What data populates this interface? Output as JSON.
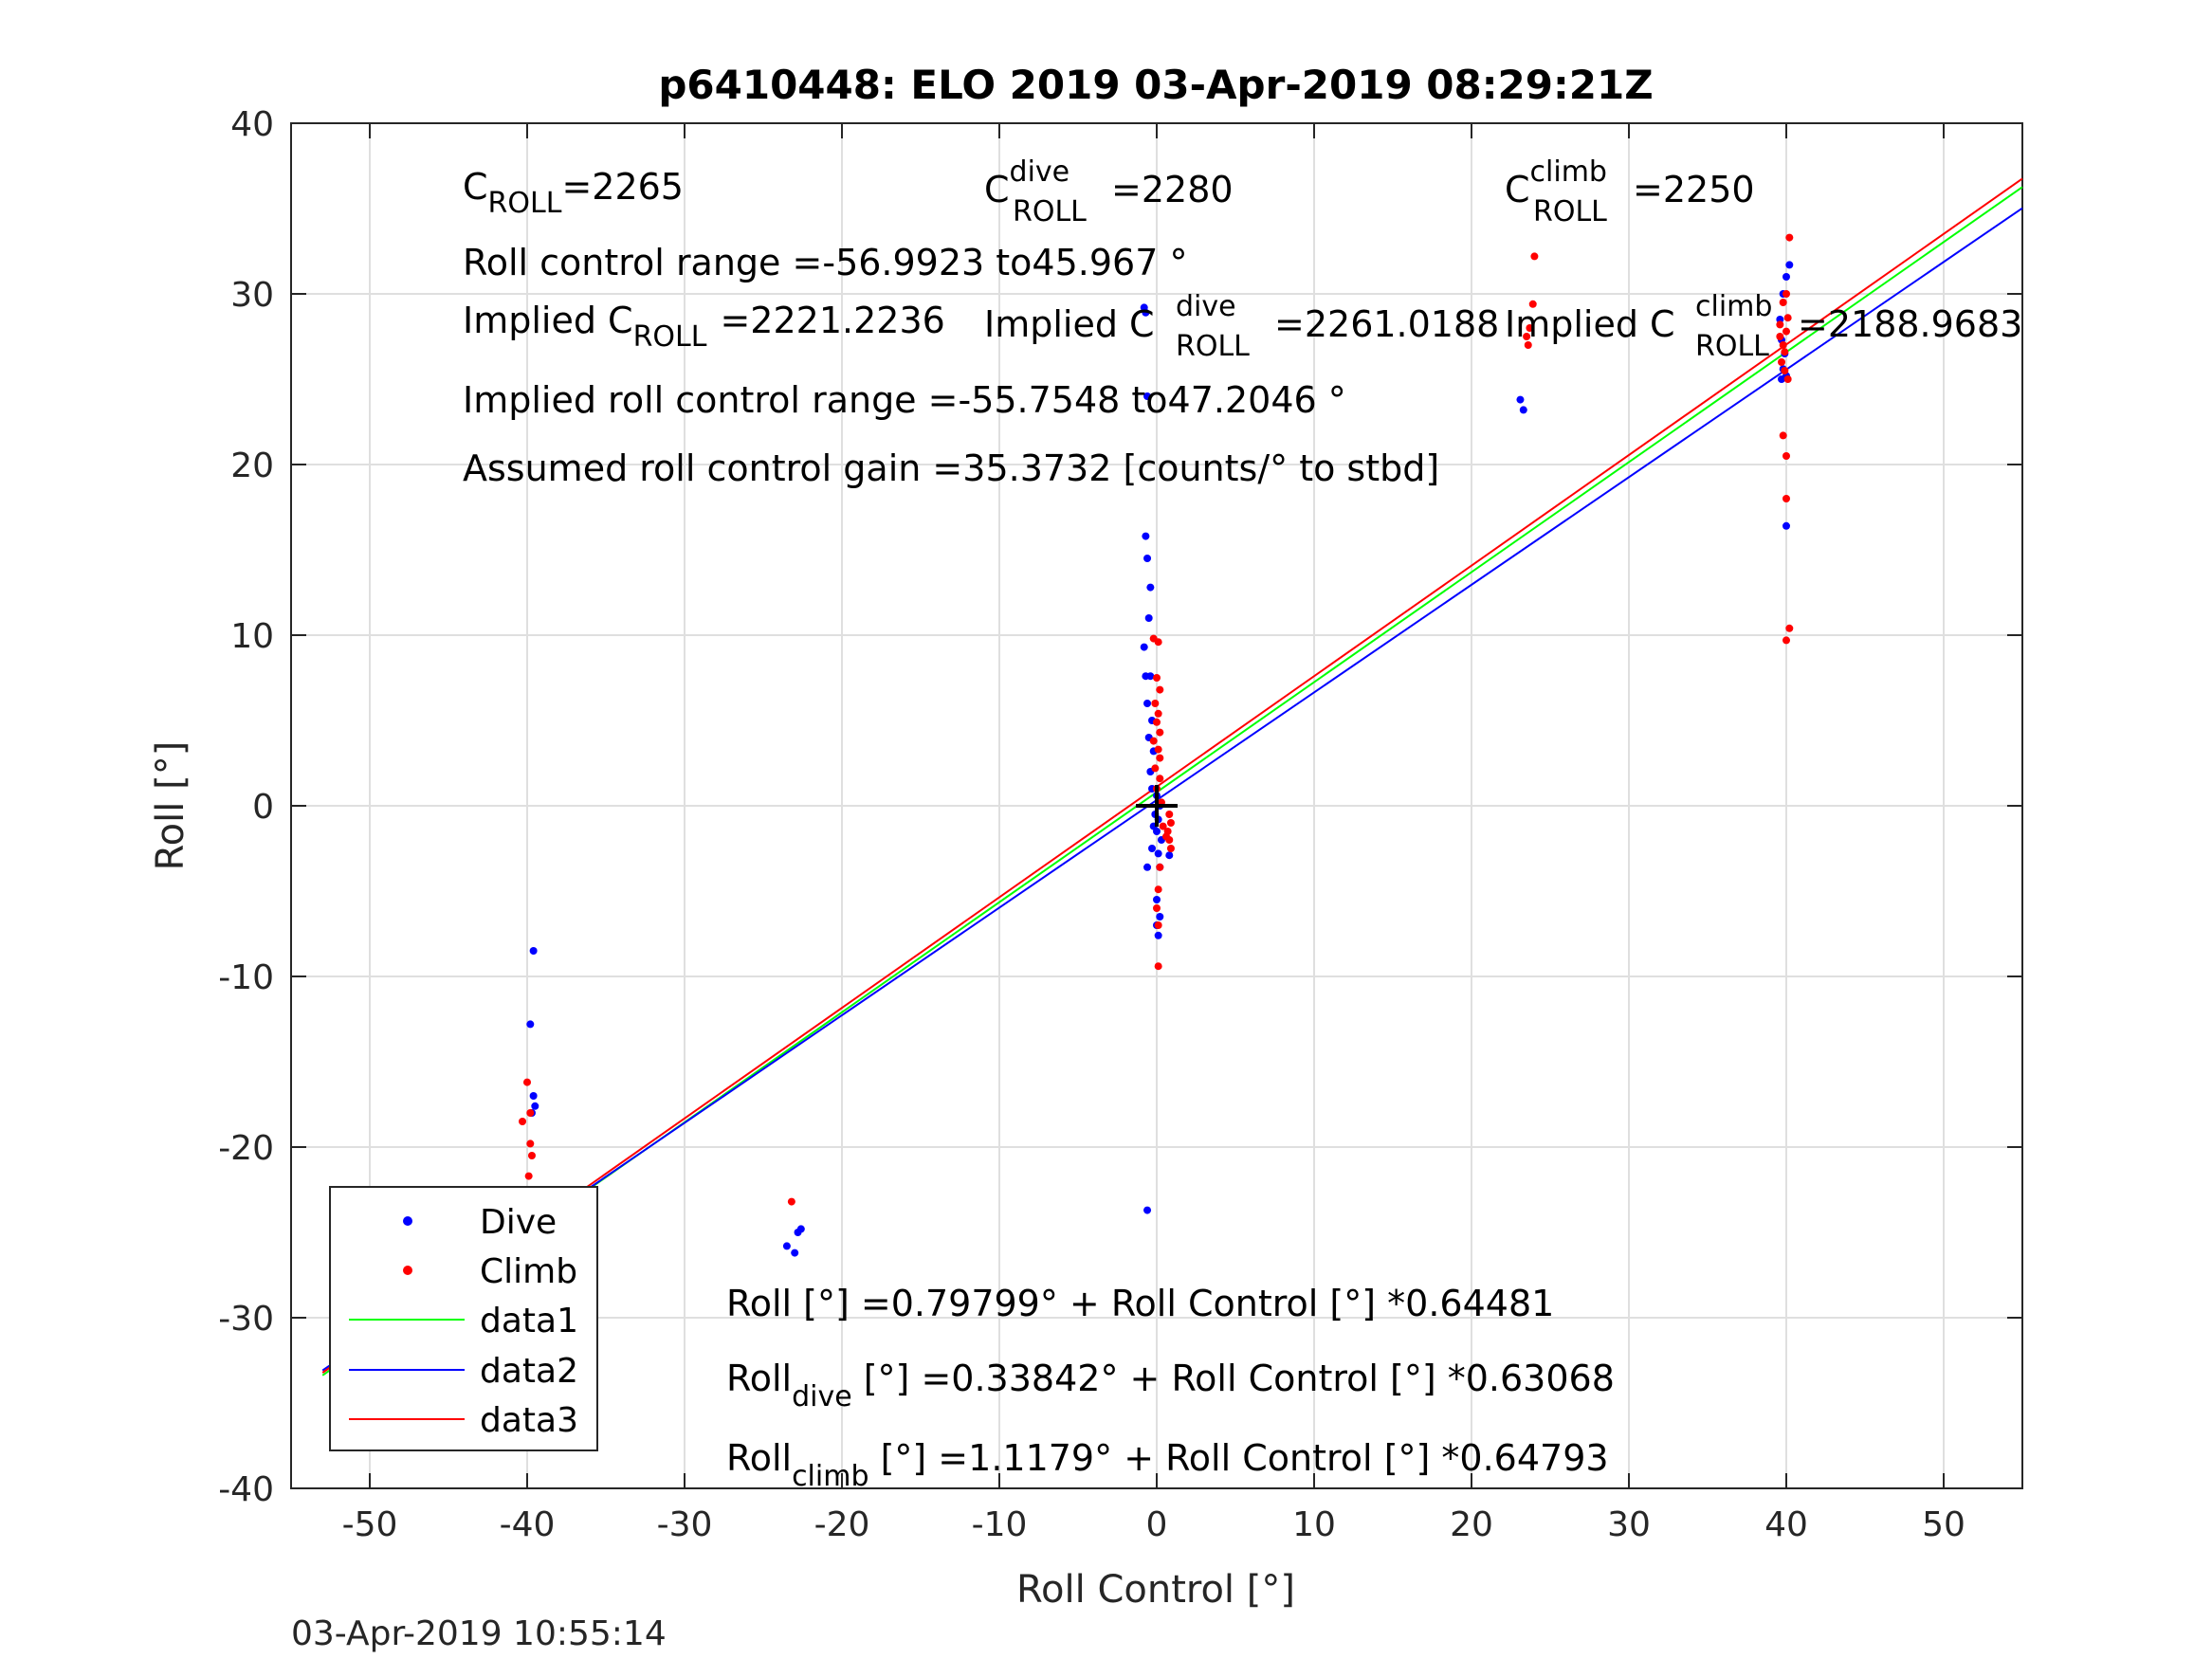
{
  "chart_data": {
    "type": "scatter",
    "title": "p6410448: ELO 2019 03-Apr-2019 08:29:21Z",
    "xlabel": "Roll Control [°]",
    "ylabel": "Roll [°]",
    "xlim": [
      -55,
      55
    ],
    "ylim": [
      -40,
      40
    ],
    "xticks": [
      -50,
      -40,
      -30,
      -20,
      -10,
      0,
      10,
      20,
      30,
      40,
      50
    ],
    "yticks": [
      -40,
      -30,
      -20,
      -10,
      0,
      10,
      20,
      30,
      40
    ],
    "grid": true,
    "legend_position": "bottom-left",
    "timestamp": "03-Apr-2019 10:55:14",
    "series": [
      {
        "name": "Dive",
        "kind": "points",
        "color": "#0000ff",
        "points": [
          [
            -39.6,
            -8.5
          ],
          [
            -39.8,
            -12.8
          ],
          [
            -39.6,
            -17.0
          ],
          [
            -39.5,
            -17.6
          ],
          [
            -39.7,
            -18.0
          ],
          [
            -39.8,
            -23.5
          ],
          [
            -39.5,
            -24.3
          ],
          [
            -39.6,
            -25.5
          ],
          [
            -39.9,
            -26.0
          ],
          [
            -39.7,
            -26.5
          ],
          [
            -39.4,
            -26.3
          ],
          [
            -39.7,
            -27.3
          ],
          [
            -39.8,
            -27.0
          ],
          [
            -39.5,
            -25.9
          ],
          [
            -23.5,
            -25.8
          ],
          [
            -23.0,
            -26.2
          ],
          [
            -22.6,
            -24.8
          ],
          [
            -22.8,
            -25.0
          ],
          [
            -0.7,
            15.8
          ],
          [
            -0.6,
            14.5
          ],
          [
            -0.4,
            12.8
          ],
          [
            -0.5,
            11.0
          ],
          [
            -0.8,
            9.3
          ],
          [
            -0.7,
            7.6
          ],
          [
            -0.4,
            7.6
          ],
          [
            -0.6,
            6.0
          ],
          [
            -0.3,
            5.0
          ],
          [
            -0.5,
            4.0
          ],
          [
            -0.2,
            3.2
          ],
          [
            -0.4,
            2.0
          ],
          [
            -0.3,
            1.0
          ],
          [
            0.0,
            0.6
          ],
          [
            0.2,
            0.0
          ],
          [
            -0.1,
            -0.5
          ],
          [
            0.1,
            -0.8
          ],
          [
            -0.2,
            -1.2
          ],
          [
            0.0,
            -1.5
          ],
          [
            0.3,
            -2.0
          ],
          [
            -0.3,
            -2.5
          ],
          [
            0.1,
            -2.8
          ],
          [
            0.8,
            -2.9
          ],
          [
            -0.6,
            -3.6
          ],
          [
            0.2,
            -3.6
          ],
          [
            0.0,
            -5.5
          ],
          [
            0.2,
            -6.5
          ],
          [
            0.0,
            -7.0
          ],
          [
            0.1,
            -7.6
          ],
          [
            -0.8,
            29.2
          ],
          [
            -0.7,
            28.9
          ],
          [
            -0.6,
            24.0
          ],
          [
            -0.6,
            -23.7
          ],
          [
            23.1,
            23.8
          ],
          [
            23.3,
            23.2
          ],
          [
            40.2,
            31.7
          ],
          [
            40.0,
            31.0
          ],
          [
            39.8,
            30.0
          ],
          [
            39.6,
            28.5
          ],
          [
            39.7,
            27.3
          ],
          [
            39.9,
            26.5
          ],
          [
            39.8,
            25.6
          ],
          [
            39.7,
            25.0
          ],
          [
            40.0,
            25.2
          ],
          [
            40.0,
            16.4
          ]
        ]
      },
      {
        "name": "Climb",
        "kind": "points",
        "color": "#ff0000",
        "points": [
          [
            -40.0,
            -16.2
          ],
          [
            -40.3,
            -18.5
          ],
          [
            -39.8,
            -18.0
          ],
          [
            -39.8,
            -19.8
          ],
          [
            -39.7,
            -20.5
          ],
          [
            -39.9,
            -21.7
          ],
          [
            -39.8,
            -23.2
          ],
          [
            -40.1,
            -23.8
          ],
          [
            -39.7,
            -24.3
          ],
          [
            -39.9,
            -25.0
          ],
          [
            -40.2,
            -25.3
          ],
          [
            -40.0,
            -25.7
          ],
          [
            -39.8,
            -26.1
          ],
          [
            -39.6,
            -26.6
          ],
          [
            -39.9,
            -27.2
          ],
          [
            -40.0,
            -27.6
          ],
          [
            -23.2,
            -23.2
          ],
          [
            -0.2,
            9.8
          ],
          [
            0.1,
            9.6
          ],
          [
            0.0,
            7.5
          ],
          [
            0.2,
            6.8
          ],
          [
            -0.1,
            6.0
          ],
          [
            0.1,
            5.4
          ],
          [
            0.0,
            4.9
          ],
          [
            0.2,
            4.3
          ],
          [
            -0.2,
            3.8
          ],
          [
            0.1,
            3.3
          ],
          [
            0.2,
            2.8
          ],
          [
            -0.1,
            2.2
          ],
          [
            0.2,
            1.6
          ],
          [
            0.0,
            1.0
          ],
          [
            0.3,
            0.2
          ],
          [
            0.8,
            -0.5
          ],
          [
            0.9,
            -1.0
          ],
          [
            0.7,
            -1.5
          ],
          [
            0.8,
            -2.0
          ],
          [
            0.9,
            -2.5
          ],
          [
            0.6,
            -1.8
          ],
          [
            0.4,
            -1.2
          ],
          [
            0.2,
            -3.6
          ],
          [
            0.1,
            -4.9
          ],
          [
            0.0,
            -6.0
          ],
          [
            0.1,
            -7.0
          ],
          [
            0.1,
            -9.4
          ],
          [
            24.0,
            32.2
          ],
          [
            23.9,
            29.4
          ],
          [
            23.7,
            28.0
          ],
          [
            23.6,
            27.0
          ],
          [
            23.5,
            27.5
          ],
          [
            40.2,
            33.3
          ],
          [
            40.0,
            30.0
          ],
          [
            39.8,
            29.5
          ],
          [
            40.1,
            28.6
          ],
          [
            39.6,
            28.2
          ],
          [
            40.0,
            27.8
          ],
          [
            39.8,
            27.0
          ],
          [
            39.9,
            26.6
          ],
          [
            39.7,
            26.0
          ],
          [
            39.9,
            25.5
          ],
          [
            40.1,
            25.0
          ],
          [
            39.6,
            27.5
          ],
          [
            39.8,
            21.7
          ],
          [
            40.0,
            20.5
          ],
          [
            40.0,
            18.0
          ],
          [
            40.2,
            10.4
          ],
          [
            40.0,
            9.7
          ]
        ]
      },
      {
        "name": "data1",
        "kind": "line",
        "color": "#00ff00",
        "intercept": 0.79799,
        "slope": 0.64481
      },
      {
        "name": "data2",
        "kind": "line",
        "color": "#0000ff",
        "intercept": 0.33842,
        "slope": 0.63068
      },
      {
        "name": "data3",
        "kind": "line",
        "color": "#ff0000",
        "intercept": 1.1179,
        "slope": 0.64793
      }
    ],
    "center_marker": {
      "x": 0,
      "y": 0,
      "symbol": "+"
    },
    "annotations": {
      "c_roll": {
        "base": "C",
        "sub": "ROLL",
        "value": "=2265"
      },
      "c_roll_dive": {
        "base": "C",
        "sup": "dive",
        "sub": "ROLL",
        "value": "=2280"
      },
      "c_roll_climb": {
        "base": "C",
        "sup": "climb",
        "sub": "ROLL",
        "value": "=2250"
      },
      "roll_control_range": "Roll control range =-56.9923 to45.967 °",
      "implied_c_roll": {
        "prefix": "Implied C",
        "sub": "ROLL",
        "value": "=2221.2236"
      },
      "implied_c_roll_dive": {
        "prefix": "Implied C",
        "sup": "dive",
        "sub": "ROLL",
        "value": "=2261.0188"
      },
      "implied_c_roll_climb": {
        "prefix": "Implied C",
        "sup": "climb",
        "sub": "ROLL",
        "value": "=2188.9683"
      },
      "implied_roll_control_range": "Implied roll control range =-55.7548 to47.2046 °",
      "assumed_gain": "Assumed roll control gain =35.3732 [counts/° to stbd]",
      "fit_all": "Roll [°] =0.79799° + Roll Control [°] *0.64481",
      "fit_dive": {
        "base": "Roll",
        "sub": "dive",
        "rest": " [°] =0.33842° + Roll Control [°] *0.63068"
      },
      "fit_climb": {
        "base": "Roll",
        "sub": "climb",
        "rest": " [°] =1.1179° + Roll Control [°] *0.64793"
      }
    }
  }
}
